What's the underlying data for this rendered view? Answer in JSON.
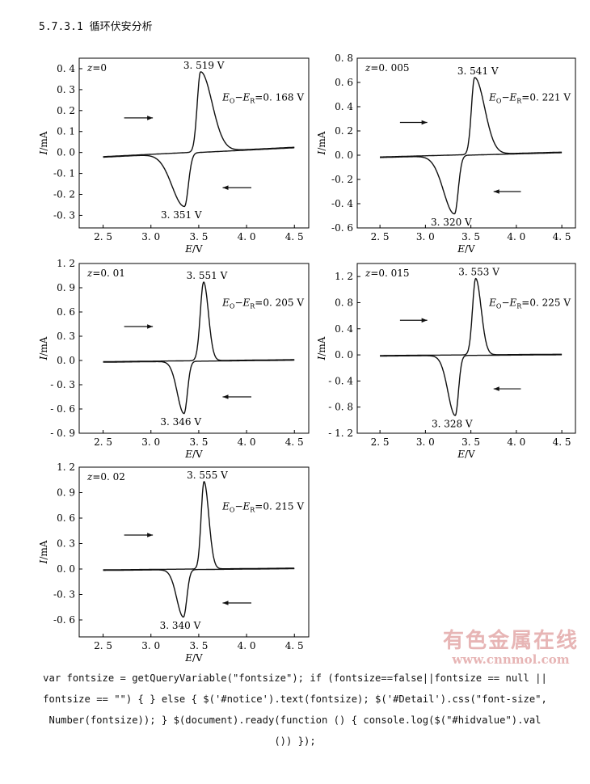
{
  "heading": "5.7.3.1 循环伏安分析",
  "watermark": {
    "line1": "有色金属在线",
    "line2": "www.cnnmol.com",
    "color": "#e7b5b5"
  },
  "code_lines": [
    "var fontsize = getQueryVariable(\"fontsize\"); if (fontsize==false||fontsize == null ||",
    "fontsize == \"\") { } else { $('#notice').text(fontsize); $('#Detail').css(\"font-size\",",
    "Number(fontsize)); } $(document).ready(function () { console.log($(\"#hidvalue\").val",
    "()) });"
  ],
  "chart_data": [
    {
      "type": "line",
      "label": "z=0",
      "xlabel": "E/V",
      "ylabel": "I/mA",
      "xlim": [
        2.25,
        4.65
      ],
      "ylim": [
        -0.36,
        0.45
      ],
      "xticks": [
        2.5,
        3.0,
        3.5,
        4.0,
        4.5
      ],
      "xtick_labels": [
        "2. 5",
        "3. 0",
        "3. 5",
        "4. 0",
        "4. 5"
      ],
      "yticks": [
        -0.3,
        -0.2,
        -0.1,
        0.0,
        0.1,
        0.2,
        0.3,
        0.4
      ],
      "ytick_labels": [
        "-0. 3",
        "-0. 2",
        "-0. 1",
        "0. 0",
        "0. 1",
        "0. 2",
        "0. 3",
        "0. 4"
      ],
      "anodic_peak": {
        "x": 3.519,
        "y": 0.385,
        "label": "3. 519  V"
      },
      "cathodic_peak": {
        "x": 3.351,
        "y": -0.255,
        "label": "3. 351  V"
      },
      "baseline": {
        "start": -0.02,
        "end": 0.025
      },
      "peak_widths": {
        "anodic_rise": 0.035,
        "anodic_tail": 0.12,
        "cathodic_tail": 0.13,
        "cathodic_rise": 0.04
      },
      "delta_e": {
        "pre": "E",
        "sub1": "O",
        "mid": "−E",
        "sub2": "R",
        "val": "=0. 168  V"
      },
      "arrows": {
        "forward": {
          "x0": 2.72,
          "x1": 3.02,
          "y": 0.165
        },
        "reverse": {
          "x0": 4.05,
          "x1": 3.75,
          "y": -0.168
        }
      }
    },
    {
      "type": "line",
      "label": "z=0. 005",
      "xlabel": "E/V",
      "ylabel": "I/mA",
      "xlim": [
        2.25,
        4.65
      ],
      "ylim": [
        -0.6,
        0.8
      ],
      "xticks": [
        2.5,
        3.0,
        3.5,
        4.0,
        4.5
      ],
      "xtick_labels": [
        "2. 5",
        "3. 0",
        "3. 5",
        "4. 0",
        "4. 5"
      ],
      "yticks": [
        -0.6,
        -0.4,
        -0.2,
        0.0,
        0.2,
        0.4,
        0.6,
        0.8
      ],
      "ytick_labels": [
        "-0. 6",
        "-0. 4",
        "-0. 2",
        "0. 0",
        "0. 2",
        "0. 4",
        "0. 6",
        "0. 8"
      ],
      "anodic_peak": {
        "x": 3.541,
        "y": 0.64,
        "label": "3. 541  V"
      },
      "cathodic_peak": {
        "x": 3.32,
        "y": -0.48,
        "label": "3. 320  V"
      },
      "baseline": {
        "start": -0.015,
        "end": 0.025
      },
      "peak_widths": {
        "anodic_rise": 0.035,
        "anodic_tail": 0.11,
        "cathodic_tail": 0.12,
        "cathodic_rise": 0.04
      },
      "delta_e": {
        "pre": "E",
        "sub1": "O",
        "mid": "−E",
        "sub2": "R",
        "val": "=0. 221  V"
      },
      "arrows": {
        "forward": {
          "x0": 2.72,
          "x1": 3.02,
          "y": 0.27
        },
        "reverse": {
          "x0": 4.05,
          "x1": 3.75,
          "y": -0.3
        }
      }
    },
    {
      "type": "line",
      "label": "z=0. 01",
      "xlabel": "E/V",
      "ylabel": "I/mA",
      "xlim": [
        2.25,
        4.65
      ],
      "ylim": [
        -0.9,
        1.2
      ],
      "xticks": [
        2.5,
        3.0,
        3.5,
        4.0,
        4.5
      ],
      "xtick_labels": [
        "2. 5",
        "3. 0",
        "3. 5",
        "4. 0",
        "4. 5"
      ],
      "yticks": [
        -0.9,
        -0.6,
        -0.3,
        0.0,
        0.3,
        0.6,
        0.9,
        1.2
      ],
      "ytick_labels": [
        "- 0. 9",
        "- 0. 6",
        "- 0. 3",
        "0. 0",
        "0. 3",
        "0. 6",
        "0. 9",
        "1. 2"
      ],
      "anodic_peak": {
        "x": 3.551,
        "y": 0.97,
        "label": "3. 551  V"
      },
      "cathodic_peak": {
        "x": 3.346,
        "y": -0.65,
        "label": "3. 346  V"
      },
      "baseline": {
        "start": -0.015,
        "end": 0.01
      },
      "peak_widths": {
        "anodic_rise": 0.035,
        "anodic_tail": 0.05,
        "cathodic_tail": 0.07,
        "cathodic_rise": 0.035
      },
      "delta_e": {
        "pre": "E",
        "sub1": "O",
        "mid": "−E",
        "sub2": "R",
        "val": "=0. 205  V"
      },
      "arrows": {
        "forward": {
          "x0": 2.72,
          "x1": 3.02,
          "y": 0.42
        },
        "reverse": {
          "x0": 4.05,
          "x1": 3.75,
          "y": -0.45
        }
      }
    },
    {
      "type": "line",
      "label": "z=0. 015",
      "xlabel": "E/V",
      "ylabel": "I/mA",
      "xlim": [
        2.25,
        4.65
      ],
      "ylim": [
        -1.2,
        1.4
      ],
      "xticks": [
        2.5,
        3.0,
        3.5,
        4.0,
        4.5
      ],
      "xtick_labels": [
        "2. 5",
        "3. 0",
        "3. 5",
        "4. 0",
        "4. 5"
      ],
      "yticks": [
        -1.2,
        -0.8,
        -0.4,
        0.0,
        0.4,
        0.8,
        1.2
      ],
      "ytick_labels": [
        "- 1. 2",
        "- 0. 8",
        "- 0. 4",
        "0. 0",
        "0. 4",
        "0. 8",
        "1. 2"
      ],
      "anodic_peak": {
        "x": 3.553,
        "y": 1.17,
        "label": "3. 553  V"
      },
      "cathodic_peak": {
        "x": 3.328,
        "y": -0.92,
        "label": "3. 328  V"
      },
      "baseline": {
        "start": -0.01,
        "end": 0.01
      },
      "peak_widths": {
        "anodic_rise": 0.035,
        "anodic_tail": 0.06,
        "cathodic_tail": 0.08,
        "cathodic_rise": 0.035
      },
      "delta_e": {
        "pre": "E",
        "sub1": "O",
        "mid": "−E",
        "sub2": "R",
        "val": "=0. 225  V"
      },
      "arrows": {
        "forward": {
          "x0": 2.72,
          "x1": 3.02,
          "y": 0.53
        },
        "reverse": {
          "x0": 4.05,
          "x1": 3.75,
          "y": -0.52
        }
      }
    },
    {
      "type": "line",
      "label": "z=0. 02",
      "xlabel": "E/V",
      "ylabel": "I/mA",
      "xlim": [
        2.25,
        4.65
      ],
      "ylim": [
        -0.8,
        1.2
      ],
      "xticks": [
        2.5,
        3.0,
        3.5,
        4.0,
        4.5
      ],
      "xtick_labels": [
        "2. 5",
        "3. 0",
        "3. 5",
        "4. 0",
        "4. 5"
      ],
      "yticks": [
        -0.6,
        -0.3,
        0.0,
        0.3,
        0.6,
        0.9,
        1.2
      ],
      "ytick_labels": [
        "-0. 6",
        "-0. 3",
        "0. 0",
        "0. 3",
        "0. 6",
        "0. 9",
        "1. 2"
      ],
      "anodic_peak": {
        "x": 3.555,
        "y": 1.03,
        "label": "3. 555  V"
      },
      "cathodic_peak": {
        "x": 3.34,
        "y": -0.56,
        "label": "3. 340  V"
      },
      "baseline": {
        "start": -0.01,
        "end": 0.01
      },
      "peak_widths": {
        "anodic_rise": 0.03,
        "anodic_tail": 0.05,
        "cathodic_tail": 0.07,
        "cathodic_rise": 0.035
      },
      "delta_e": {
        "pre": "E",
        "sub1": "O",
        "mid": "−E",
        "sub2": "R",
        "val": "=0. 215  V"
      },
      "arrows": {
        "forward": {
          "x0": 2.72,
          "x1": 3.02,
          "y": 0.4
        },
        "reverse": {
          "x0": 4.05,
          "x1": 3.75,
          "y": -0.4
        }
      }
    }
  ]
}
